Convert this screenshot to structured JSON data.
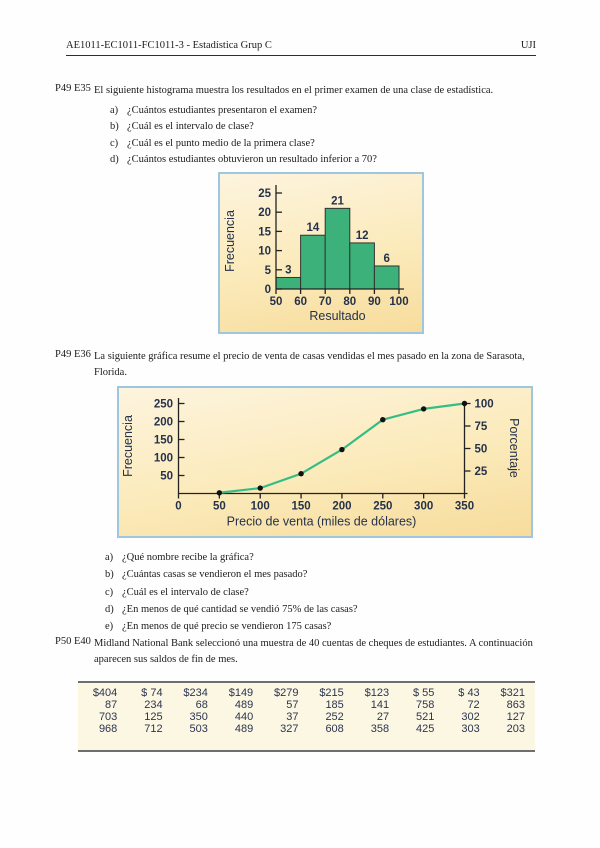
{
  "header": {
    "course": "AE1011-EC1011-FC1011-3 - Estadística Grup C",
    "institution": "UJI"
  },
  "exercises": [
    {
      "id": "P49 E35",
      "statement": "El siguiente histograma muestra los resultados en el primer examen de una clase de estadística.",
      "items": [
        {
          "letter": "a)",
          "text": "¿Cuántos estudiantes presentaron el examen?"
        },
        {
          "letter": "b)",
          "text": "¿Cuál es el intervalo de clase?"
        },
        {
          "letter": "c)",
          "text": "¿Cuál es el punto medio de la primera clase?"
        },
        {
          "letter": "d)",
          "text": "¿Cuántos estudiantes obtuvieron un resultado inferior a 70?"
        }
      ]
    },
    {
      "id": "P49 E36",
      "statement": "La siguiente gráfica resume el precio de venta de casas vendidas el mes pasado en la zona de Sarasota, Florida.",
      "items": [
        {
          "letter": "a)",
          "text": "¿Qué nombre recibe la gráfica?"
        },
        {
          "letter": "b)",
          "text": "¿Cuántas casas se vendieron el mes pasado?"
        },
        {
          "letter": "c)",
          "text": "¿Cuál es el intervalo de clase?"
        },
        {
          "letter": "d)",
          "text": "¿En menos de qué cantidad se vendió 75% de las casas?"
        },
        {
          "letter": "e)",
          "text": "¿En menos de qué precio se vendieron 175 casas?"
        }
      ]
    },
    {
      "id": "P50 E40",
      "statement": "Midland National Bank seleccionó una muestra de 40 cuentas de cheques de estudiantes. A continuación aparecen sus saldos de fin de mes.",
      "table_rows": [
        [
          "$404",
          "$ 74",
          "$234",
          "$149",
          "$279",
          "$215",
          "$123",
          "$ 55",
          "$ 43",
          "$321"
        ],
        [
          "87",
          "234",
          "68",
          "489",
          "57",
          "185",
          "141",
          "758",
          "72",
          "863"
        ],
        [
          "703",
          "125",
          "350",
          "440",
          "37",
          "252",
          "27",
          "521",
          "302",
          "127"
        ],
        [
          "968",
          "712",
          "503",
          "489",
          "327",
          "608",
          "358",
          "425",
          "303",
          "203"
        ]
      ]
    }
  ],
  "chart_data": [
    {
      "type": "bar",
      "title": "",
      "xlabel": "Resultado",
      "ylabel": "Frecuencia",
      "bin_edges": [
        50,
        60,
        70,
        80,
        90,
        100
      ],
      "values": [
        3,
        14,
        21,
        12,
        6
      ],
      "ylim": [
        0,
        25
      ],
      "yticks": [
        0,
        5,
        10,
        15,
        20,
        25
      ],
      "xticks": [
        50,
        60,
        70,
        80,
        90,
        100
      ],
      "grid": false,
      "legend": "none"
    },
    {
      "type": "line",
      "title": "",
      "xlabel": "Precio de venta (miles de dólares)",
      "ylabel": "Frecuencia",
      "ylabel_right": "Porcentaje",
      "x": [
        50,
        100,
        150,
        200,
        250,
        300,
        350
      ],
      "values": [
        2,
        15,
        55,
        122,
        205,
        235,
        250
      ],
      "xlim": [
        0,
        350
      ],
      "ylim": [
        0,
        250
      ],
      "xticks": [
        0,
        50,
        100,
        150,
        200,
        250,
        300,
        350
      ],
      "yticks_left": [
        50,
        100,
        150,
        200,
        250
      ],
      "yticks_right": [
        25,
        50,
        75,
        100
      ],
      "right_axis_max_percent": 100,
      "grid": false,
      "legend": "none"
    }
  ],
  "theme": {
    "box_border": "#9fc6df",
    "bar_fill": "#3cb179",
    "bar_stroke": "#333333",
    "line_color": "#35bd85",
    "point_color": "#111111",
    "chart_text": "#26324a",
    "table_bg": "#fcf7e3",
    "table_border": "#6e6e6e",
    "table_text": "#2b3550"
  }
}
